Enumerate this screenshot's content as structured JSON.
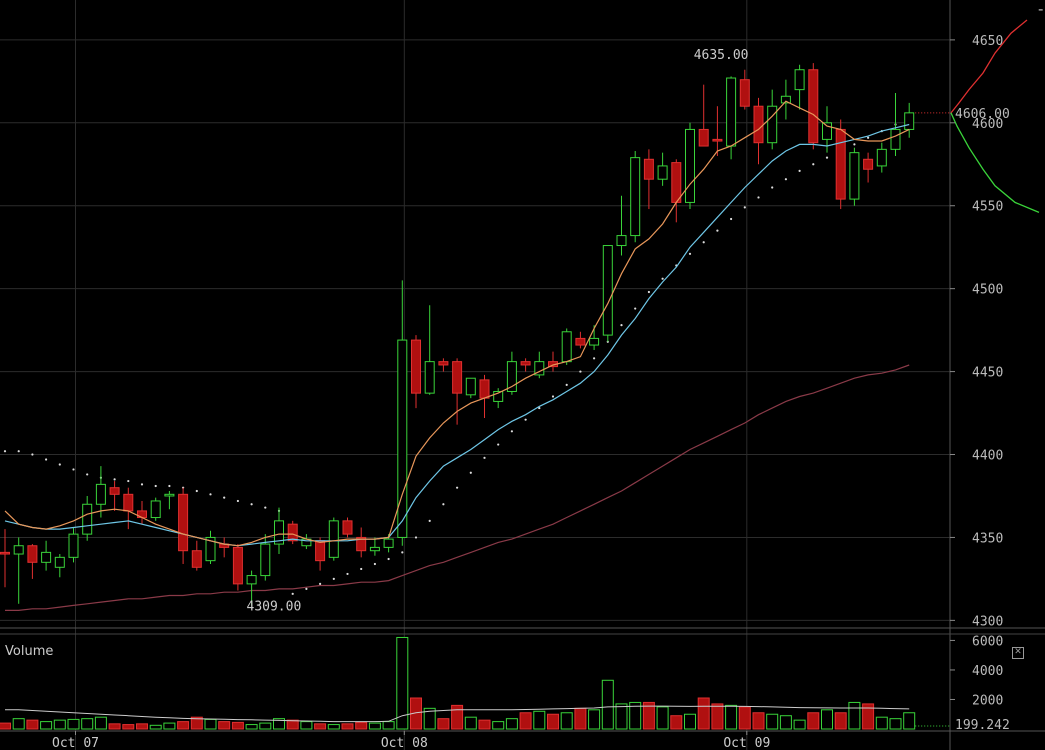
{
  "chart_data": [
    {
      "type": "candlestick",
      "x_labels": [
        "Oct 07",
        "Oct 08",
        "Oct 09"
      ],
      "y_ticks": [
        4300,
        4350,
        4400,
        4450,
        4500,
        4550,
        4600,
        4650
      ],
      "ylim": [
        4296,
        4665
      ],
      "grid": true,
      "current_price": "4606.00",
      "high_annotation": {
        "label": "4635.00",
        "value": 4635,
        "candle": 53
      },
      "low_annotation": {
        "label": "4309.00",
        "value": 4309,
        "candle": 17
      },
      "candles": [
        [
          4341,
          4355,
          4320,
          4340
        ],
        [
          4340,
          4350,
          4310,
          4345
        ],
        [
          4345,
          4346,
          4325,
          4335
        ],
        [
          4335,
          4348,
          4330,
          4341
        ],
        [
          4332,
          4340,
          4326,
          4338
        ],
        [
          4338,
          4356,
          4335,
          4352
        ],
        [
          4352,
          4375,
          4348,
          4370
        ],
        [
          4370,
          4393,
          4362,
          4382
        ],
        [
          4380,
          4384,
          4366,
          4376
        ],
        [
          4376,
          4380,
          4355,
          4366
        ],
        [
          4366,
          4372,
          4358,
          4362
        ],
        [
          4362,
          4374,
          4360,
          4372
        ],
        [
          4375,
          4378,
          4367,
          4376
        ],
        [
          4376,
          4380,
          4334,
          4342
        ],
        [
          4342,
          4348,
          4330,
          4332
        ],
        [
          4336,
          4354,
          4334,
          4350
        ],
        [
          4346,
          4350,
          4338,
          4344
        ],
        [
          4344,
          4346,
          4318,
          4322
        ],
        [
          4322,
          4330,
          4309,
          4327
        ],
        [
          4327,
          4352,
          4324,
          4346
        ],
        [
          4346,
          4368,
          4340,
          4360
        ],
        [
          4358,
          4360,
          4346,
          4348
        ],
        [
          4345,
          4352,
          4343,
          4349
        ],
        [
          4348,
          4350,
          4330,
          4336
        ],
        [
          4338,
          4362,
          4336,
          4360
        ],
        [
          4360,
          4362,
          4350,
          4352
        ],
        [
          4350,
          4356,
          4338,
          4342
        ],
        [
          4342,
          4350,
          4339,
          4344
        ],
        [
          4344,
          4352,
          4341,
          4349
        ],
        [
          4350,
          4505,
          4345,
          4469
        ],
        [
          4469,
          4472,
          4428,
          4437
        ],
        [
          4437,
          4490,
          4436,
          4456
        ],
        [
          4456,
          4458,
          4450,
          4454
        ],
        [
          4456,
          4458,
          4418,
          4437
        ],
        [
          4436,
          4446,
          4434,
          4446
        ],
        [
          4445,
          4448,
          4422,
          4434
        ],
        [
          4432,
          4440,
          4428,
          4438
        ],
        [
          4438,
          4462,
          4436,
          4456
        ],
        [
          4456,
          4458,
          4450,
          4454
        ],
        [
          4448,
          4462,
          4446,
          4456
        ],
        [
          4456,
          4462,
          4450,
          4453
        ],
        [
          4456,
          4476,
          4454,
          4474
        ],
        [
          4470,
          4474,
          4464,
          4466
        ],
        [
          4466,
          4478,
          4463,
          4470
        ],
        [
          4472,
          4524,
          4468,
          4526
        ],
        [
          4526,
          4556,
          4520,
          4532
        ],
        [
          4532,
          4583,
          4528,
          4579
        ],
        [
          4578,
          4584,
          4548,
          4566
        ],
        [
          4566,
          4582,
          4562,
          4574
        ],
        [
          4576,
          4578,
          4540,
          4552
        ],
        [
          4552,
          4600,
          4548,
          4596
        ],
        [
          4596,
          4623,
          4586,
          4586
        ],
        [
          4590,
          4610,
          4580,
          4589
        ],
        [
          4586,
          4628,
          4578,
          4627
        ],
        [
          4626,
          4632,
          4608,
          4610
        ],
        [
          4610,
          4615,
          4575,
          4588
        ],
        [
          4588,
          4620,
          4584,
          4610
        ],
        [
          4612,
          4626,
          4602,
          4616
        ],
        [
          4620,
          4635,
          4608,
          4632
        ],
        [
          4632,
          4636,
          4584,
          4588
        ],
        [
          4590,
          4610,
          4582,
          4600
        ],
        [
          4596,
          4602,
          4548,
          4554
        ],
        [
          4554,
          4585,
          4550,
          4582
        ],
        [
          4578,
          4582,
          4564,
          4572
        ],
        [
          4574,
          4588,
          4570,
          4584
        ],
        [
          4584,
          4618,
          4580,
          4596
        ],
        [
          4596,
          4612,
          4591,
          4606
        ]
      ],
      "sma_orange": [
        4366,
        4358,
        4356,
        4355,
        4357,
        4360,
        4364,
        4366,
        4367,
        4366,
        4362,
        4358,
        4355,
        4352,
        4350,
        4348,
        4346,
        4345,
        4347,
        4350,
        4352,
        4352,
        4349,
        4347,
        4348,
        4349,
        4349,
        4349,
        4350,
        4376,
        4399,
        4410,
        4419,
        4426,
        4431,
        4434,
        4437,
        4441,
        4446,
        4450,
        4454,
        4456,
        4459,
        4476,
        4491,
        4509,
        4524,
        4530,
        4539,
        4552,
        4563,
        4572,
        4583,
        4586,
        4591,
        4596,
        4604,
        4613,
        4609,
        4605,
        4598,
        4596,
        4590,
        4589,
        4589,
        4592,
        4596
      ],
      "sma_blue": [
        4360,
        4358,
        4356,
        4355,
        4355,
        4356,
        4357,
        4358,
        4359,
        4360,
        4358,
        4356,
        4354,
        4352,
        4350,
        4348,
        4346,
        4345,
        4346,
        4347,
        4348,
        4349,
        4348,
        4348,
        4348,
        4348,
        4349,
        4349,
        4350,
        4360,
        4374,
        4384,
        4393,
        4398,
        4403,
        4409,
        4415,
        4420,
        4424,
        4429,
        4433,
        4438,
        4443,
        4450,
        4460,
        4472,
        4482,
        4494,
        4504,
        4513,
        4525,
        4534,
        4543,
        4552,
        4561,
        4569,
        4577,
        4583,
        4587,
        4587,
        4586,
        4588,
        4590,
        4592,
        4595,
        4597,
        4599
      ],
      "sma_long": [
        4306,
        4306,
        4307,
        4307,
        4308,
        4309,
        4310,
        4311,
        4312,
        4313,
        4313,
        4314,
        4315,
        4315,
        4316,
        4316,
        4317,
        4317,
        4318,
        4318,
        4319,
        4319,
        4320,
        4321,
        4321,
        4322,
        4323,
        4323,
        4324,
        4327,
        4330,
        4333,
        4335,
        4338,
        4341,
        4344,
        4347,
        4349,
        4352,
        4355,
        4358,
        4362,
        4366,
        4370,
        4374,
        4378,
        4383,
        4388,
        4393,
        4398,
        4403,
        4407,
        4411,
        4415,
        4419,
        4424,
        4428,
        4432,
        4435,
        4437,
        4440,
        4443,
        4446,
        4448,
        4449,
        4451,
        4454
      ],
      "psar": [
        4402,
        4402,
        4400,
        4397,
        4394,
        4391,
        4388,
        4386,
        4385,
        4384,
        4382,
        4381,
        4381,
        4380,
        4378,
        4376,
        4374,
        4372,
        4370,
        4368,
        4366,
        4316,
        4319,
        4322,
        4325,
        4328,
        4331,
        4334,
        4337,
        4341,
        4350,
        4360,
        4370,
        4380,
        4389,
        4398,
        4406,
        4414,
        4421,
        4428,
        4435,
        4442,
        4450,
        4458,
        4468,
        4478,
        4488,
        4498,
        4506,
        4514,
        4521,
        4528,
        4535,
        4542,
        4549,
        4555,
        4561,
        4566,
        4571,
        4575,
        4579,
        4583,
        4587,
        4591,
        4595,
        4599,
        4603
      ],
      "depth_asks": [
        [
          4606,
          0
        ],
        [
          4612,
          4
        ],
        [
          4620,
          9
        ],
        [
          4630,
          16
        ],
        [
          4642,
          22
        ],
        [
          4654,
          30
        ],
        [
          4662,
          38
        ]
      ],
      "depth_bids": [
        [
          4606,
          0
        ],
        [
          4598,
          3
        ],
        [
          4585,
          9
        ],
        [
          4572,
          16
        ],
        [
          4562,
          22
        ],
        [
          4552,
          32
        ],
        [
          4546,
          44
        ]
      ]
    },
    {
      "type": "bar",
      "title": "Volume",
      "y_ticks": [
        2000,
        4000,
        6000
      ],
      "ylim": [
        0,
        6300
      ],
      "current_value": "199.242",
      "volumes": [
        400,
        700,
        600,
        500,
        600,
        650,
        700,
        800,
        350,
        300,
        350,
        250,
        400,
        500,
        800,
        650,
        500,
        450,
        300,
        400,
        700,
        600,
        500,
        350,
        300,
        350,
        450,
        400,
        500,
        6200,
        2100,
        1400,
        700,
        1600,
        800,
        600,
        500,
        700,
        1100,
        1200,
        1000,
        1100,
        1400,
        1300,
        3300,
        1700,
        1800,
        1800,
        1500,
        900,
        1000,
        2100,
        1700,
        1600,
        1500,
        1100,
        1000,
        900,
        600,
        1100,
        1300,
        1100,
        1800,
        1700,
        800,
        700,
        1100
      ],
      "volume_ma": [
        1300,
        1300,
        1250,
        1200,
        1150,
        1100,
        1050,
        1000,
        950,
        900,
        850,
        800,
        760,
        720,
        700,
        680,
        660,
        640,
        620,
        600,
        580,
        560,
        540,
        520,
        500,
        500,
        500,
        500,
        520,
        900,
        1100,
        1200,
        1250,
        1300,
        1300,
        1300,
        1300,
        1300,
        1320,
        1340,
        1360,
        1380,
        1400,
        1420,
        1500,
        1520,
        1540,
        1550,
        1550,
        1540,
        1530,
        1540,
        1540,
        1540,
        1530,
        1520,
        1500,
        1480,
        1450,
        1440,
        1430,
        1420,
        1420,
        1420,
        1400,
        1380,
        1360
      ]
    }
  ]
}
